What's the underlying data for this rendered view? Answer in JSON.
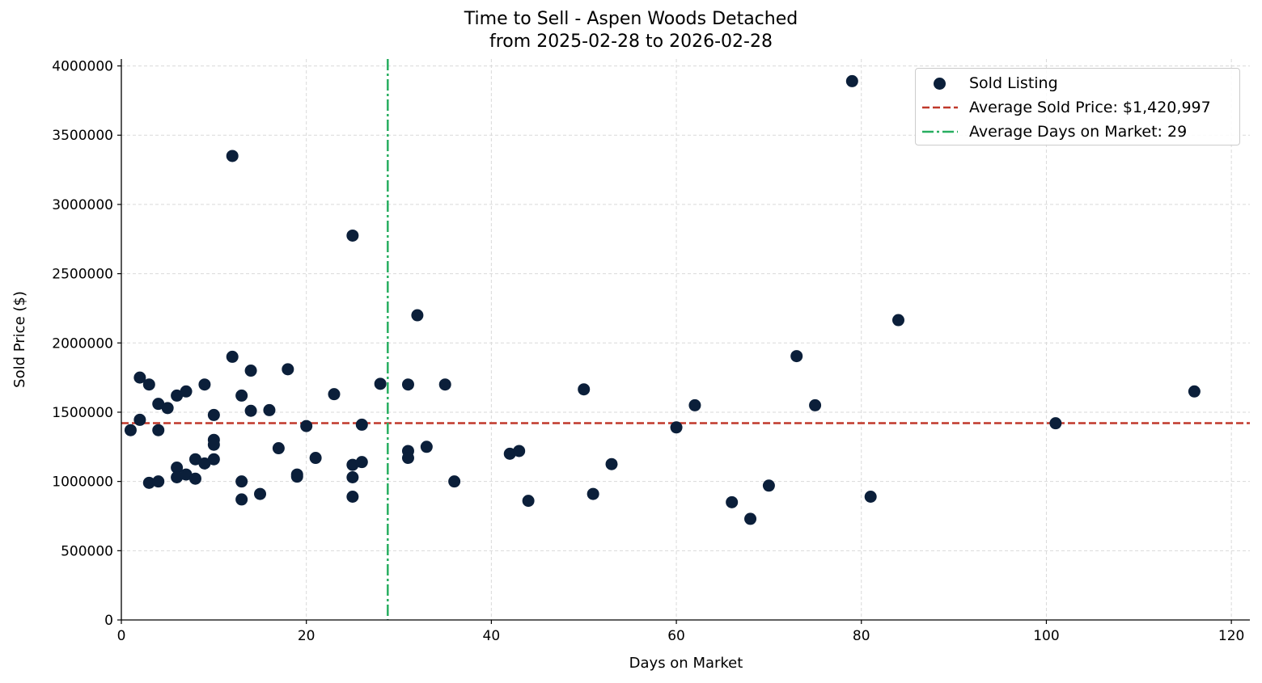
{
  "chart_data": {
    "type": "scatter",
    "title": "Time to Sell - Aspen Woods Detached",
    "subtitle": "from 2025-02-28 to 2026-02-28",
    "xlabel": "Days on Market",
    "ylabel": "Sold Price ($)",
    "xlim": [
      0,
      122
    ],
    "ylim": [
      0,
      4050000
    ],
    "xticks": [
      0,
      20,
      40,
      60,
      80,
      100,
      120
    ],
    "yticks": [
      0,
      500000,
      1000000,
      1500000,
      2000000,
      2500000,
      3000000,
      3500000,
      4000000
    ],
    "grid": true,
    "legend_position": "upper right",
    "series": [
      {
        "name": "Sold Listing",
        "color": "#0b1f3a",
        "points": [
          [
            1,
            1370000
          ],
          [
            2,
            1750000
          ],
          [
            2,
            1445000
          ],
          [
            3,
            1700000
          ],
          [
            3,
            990000
          ],
          [
            4,
            1560000
          ],
          [
            4,
            1370000
          ],
          [
            4,
            1000000
          ],
          [
            5,
            1530000
          ],
          [
            6,
            1620000
          ],
          [
            6,
            1100000
          ],
          [
            6,
            1030000
          ],
          [
            7,
            1650000
          ],
          [
            7,
            1050000
          ],
          [
            8,
            1160000
          ],
          [
            8,
            1020000
          ],
          [
            9,
            1700000
          ],
          [
            9,
            1130000
          ],
          [
            10,
            1480000
          ],
          [
            10,
            1300000
          ],
          [
            10,
            1265000
          ],
          [
            10,
            1160000
          ],
          [
            12,
            3350000
          ],
          [
            12,
            1900000
          ],
          [
            13,
            1620000
          ],
          [
            13,
            1000000
          ],
          [
            13,
            870000
          ],
          [
            14,
            1800000
          ],
          [
            14,
            1510000
          ],
          [
            15,
            910000
          ],
          [
            16,
            1515000
          ],
          [
            17,
            1240000
          ],
          [
            18,
            1810000
          ],
          [
            19,
            1050000
          ],
          [
            19,
            1035000
          ],
          [
            20,
            1400000
          ],
          [
            21,
            1170000
          ],
          [
            23,
            1630000
          ],
          [
            25,
            2775000
          ],
          [
            25,
            1120000
          ],
          [
            25,
            1030000
          ],
          [
            25,
            890000
          ],
          [
            26,
            1410000
          ],
          [
            26,
            1140000
          ],
          [
            28,
            1705000
          ],
          [
            31,
            1700000
          ],
          [
            31,
            1220000
          ],
          [
            31,
            1170000
          ],
          [
            32,
            2200000
          ],
          [
            33,
            1250000
          ],
          [
            35,
            1700000
          ],
          [
            36,
            1000000
          ],
          [
            42,
            1200000
          ],
          [
            43,
            1220000
          ],
          [
            44,
            860000
          ],
          [
            50,
            1665000
          ],
          [
            51,
            910000
          ],
          [
            53,
            1125000
          ],
          [
            60,
            1390000
          ],
          [
            62,
            1550000
          ],
          [
            66,
            850000
          ],
          [
            68,
            730000
          ],
          [
            70,
            970000
          ],
          [
            73,
            1905000
          ],
          [
            75,
            1550000
          ],
          [
            79,
            3890000
          ],
          [
            81,
            890000
          ],
          [
            84,
            2165000
          ],
          [
            101,
            1420000
          ],
          [
            116,
            1650000
          ]
        ]
      }
    ],
    "reference_lines": [
      {
        "name": "Average Sold Price: $1,420,997",
        "orientation": "horizontal",
        "value": 1420997,
        "style": "dashed",
        "color": "#c0392b"
      },
      {
        "name": "Average Days on Market: 29",
        "orientation": "vertical",
        "value": 28.8,
        "style": "dashdot",
        "color": "#27ae60"
      }
    ]
  },
  "legend": {
    "items": [
      "Sold Listing",
      "Average Sold Price: $1,420,997",
      "Average Days on Market: 29"
    ]
  }
}
